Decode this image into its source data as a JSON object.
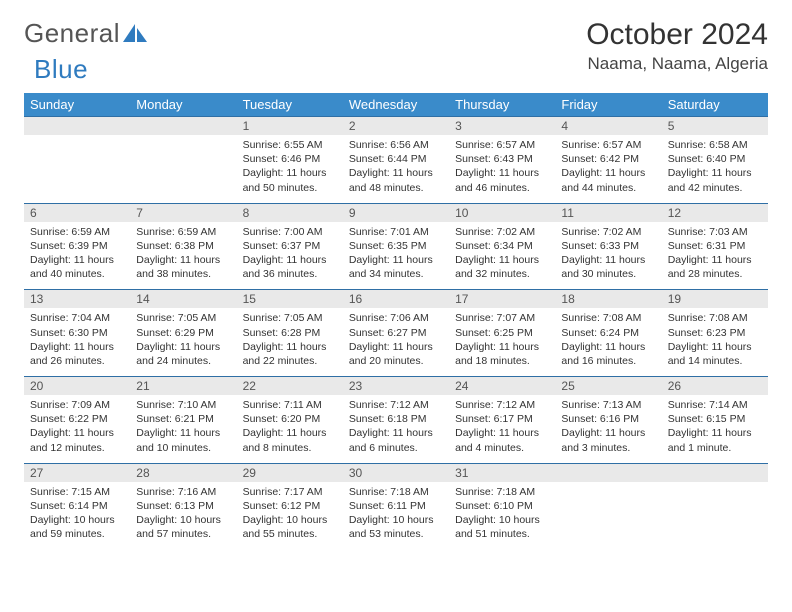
{
  "brand": {
    "part1": "General",
    "part2": "Blue"
  },
  "title": "October 2024",
  "location": "Naama, Naama, Algeria",
  "colors": {
    "header_bg": "#3a8bca",
    "header_text": "#ffffff",
    "daynum_bg": "#e9e9e9",
    "row_border": "#2f6fa5",
    "brand_gray": "#555555",
    "brand_blue": "#2f7bbf"
  },
  "weekdays": [
    "Sunday",
    "Monday",
    "Tuesday",
    "Wednesday",
    "Thursday",
    "Friday",
    "Saturday"
  ],
  "weeks": [
    [
      {
        "n": "",
        "sr": "",
        "ss": "",
        "dl": ""
      },
      {
        "n": "",
        "sr": "",
        "ss": "",
        "dl": ""
      },
      {
        "n": "1",
        "sr": "Sunrise: 6:55 AM",
        "ss": "Sunset: 6:46 PM",
        "dl": "Daylight: 11 hours and 50 minutes."
      },
      {
        "n": "2",
        "sr": "Sunrise: 6:56 AM",
        "ss": "Sunset: 6:44 PM",
        "dl": "Daylight: 11 hours and 48 minutes."
      },
      {
        "n": "3",
        "sr": "Sunrise: 6:57 AM",
        "ss": "Sunset: 6:43 PM",
        "dl": "Daylight: 11 hours and 46 minutes."
      },
      {
        "n": "4",
        "sr": "Sunrise: 6:57 AM",
        "ss": "Sunset: 6:42 PM",
        "dl": "Daylight: 11 hours and 44 minutes."
      },
      {
        "n": "5",
        "sr": "Sunrise: 6:58 AM",
        "ss": "Sunset: 6:40 PM",
        "dl": "Daylight: 11 hours and 42 minutes."
      }
    ],
    [
      {
        "n": "6",
        "sr": "Sunrise: 6:59 AM",
        "ss": "Sunset: 6:39 PM",
        "dl": "Daylight: 11 hours and 40 minutes."
      },
      {
        "n": "7",
        "sr": "Sunrise: 6:59 AM",
        "ss": "Sunset: 6:38 PM",
        "dl": "Daylight: 11 hours and 38 minutes."
      },
      {
        "n": "8",
        "sr": "Sunrise: 7:00 AM",
        "ss": "Sunset: 6:37 PM",
        "dl": "Daylight: 11 hours and 36 minutes."
      },
      {
        "n": "9",
        "sr": "Sunrise: 7:01 AM",
        "ss": "Sunset: 6:35 PM",
        "dl": "Daylight: 11 hours and 34 minutes."
      },
      {
        "n": "10",
        "sr": "Sunrise: 7:02 AM",
        "ss": "Sunset: 6:34 PM",
        "dl": "Daylight: 11 hours and 32 minutes."
      },
      {
        "n": "11",
        "sr": "Sunrise: 7:02 AM",
        "ss": "Sunset: 6:33 PM",
        "dl": "Daylight: 11 hours and 30 minutes."
      },
      {
        "n": "12",
        "sr": "Sunrise: 7:03 AM",
        "ss": "Sunset: 6:31 PM",
        "dl": "Daylight: 11 hours and 28 minutes."
      }
    ],
    [
      {
        "n": "13",
        "sr": "Sunrise: 7:04 AM",
        "ss": "Sunset: 6:30 PM",
        "dl": "Daylight: 11 hours and 26 minutes."
      },
      {
        "n": "14",
        "sr": "Sunrise: 7:05 AM",
        "ss": "Sunset: 6:29 PM",
        "dl": "Daylight: 11 hours and 24 minutes."
      },
      {
        "n": "15",
        "sr": "Sunrise: 7:05 AM",
        "ss": "Sunset: 6:28 PM",
        "dl": "Daylight: 11 hours and 22 minutes."
      },
      {
        "n": "16",
        "sr": "Sunrise: 7:06 AM",
        "ss": "Sunset: 6:27 PM",
        "dl": "Daylight: 11 hours and 20 minutes."
      },
      {
        "n": "17",
        "sr": "Sunrise: 7:07 AM",
        "ss": "Sunset: 6:25 PM",
        "dl": "Daylight: 11 hours and 18 minutes."
      },
      {
        "n": "18",
        "sr": "Sunrise: 7:08 AM",
        "ss": "Sunset: 6:24 PM",
        "dl": "Daylight: 11 hours and 16 minutes."
      },
      {
        "n": "19",
        "sr": "Sunrise: 7:08 AM",
        "ss": "Sunset: 6:23 PM",
        "dl": "Daylight: 11 hours and 14 minutes."
      }
    ],
    [
      {
        "n": "20",
        "sr": "Sunrise: 7:09 AM",
        "ss": "Sunset: 6:22 PM",
        "dl": "Daylight: 11 hours and 12 minutes."
      },
      {
        "n": "21",
        "sr": "Sunrise: 7:10 AM",
        "ss": "Sunset: 6:21 PM",
        "dl": "Daylight: 11 hours and 10 minutes."
      },
      {
        "n": "22",
        "sr": "Sunrise: 7:11 AM",
        "ss": "Sunset: 6:20 PM",
        "dl": "Daylight: 11 hours and 8 minutes."
      },
      {
        "n": "23",
        "sr": "Sunrise: 7:12 AM",
        "ss": "Sunset: 6:18 PM",
        "dl": "Daylight: 11 hours and 6 minutes."
      },
      {
        "n": "24",
        "sr": "Sunrise: 7:12 AM",
        "ss": "Sunset: 6:17 PM",
        "dl": "Daylight: 11 hours and 4 minutes."
      },
      {
        "n": "25",
        "sr": "Sunrise: 7:13 AM",
        "ss": "Sunset: 6:16 PM",
        "dl": "Daylight: 11 hours and 3 minutes."
      },
      {
        "n": "26",
        "sr": "Sunrise: 7:14 AM",
        "ss": "Sunset: 6:15 PM",
        "dl": "Daylight: 11 hours and 1 minute."
      }
    ],
    [
      {
        "n": "27",
        "sr": "Sunrise: 7:15 AM",
        "ss": "Sunset: 6:14 PM",
        "dl": "Daylight: 10 hours and 59 minutes."
      },
      {
        "n": "28",
        "sr": "Sunrise: 7:16 AM",
        "ss": "Sunset: 6:13 PM",
        "dl": "Daylight: 10 hours and 57 minutes."
      },
      {
        "n": "29",
        "sr": "Sunrise: 7:17 AM",
        "ss": "Sunset: 6:12 PM",
        "dl": "Daylight: 10 hours and 55 minutes."
      },
      {
        "n": "30",
        "sr": "Sunrise: 7:18 AM",
        "ss": "Sunset: 6:11 PM",
        "dl": "Daylight: 10 hours and 53 minutes."
      },
      {
        "n": "31",
        "sr": "Sunrise: 7:18 AM",
        "ss": "Sunset: 6:10 PM",
        "dl": "Daylight: 10 hours and 51 minutes."
      },
      {
        "n": "",
        "sr": "",
        "ss": "",
        "dl": ""
      },
      {
        "n": "",
        "sr": "",
        "ss": "",
        "dl": ""
      }
    ]
  ]
}
